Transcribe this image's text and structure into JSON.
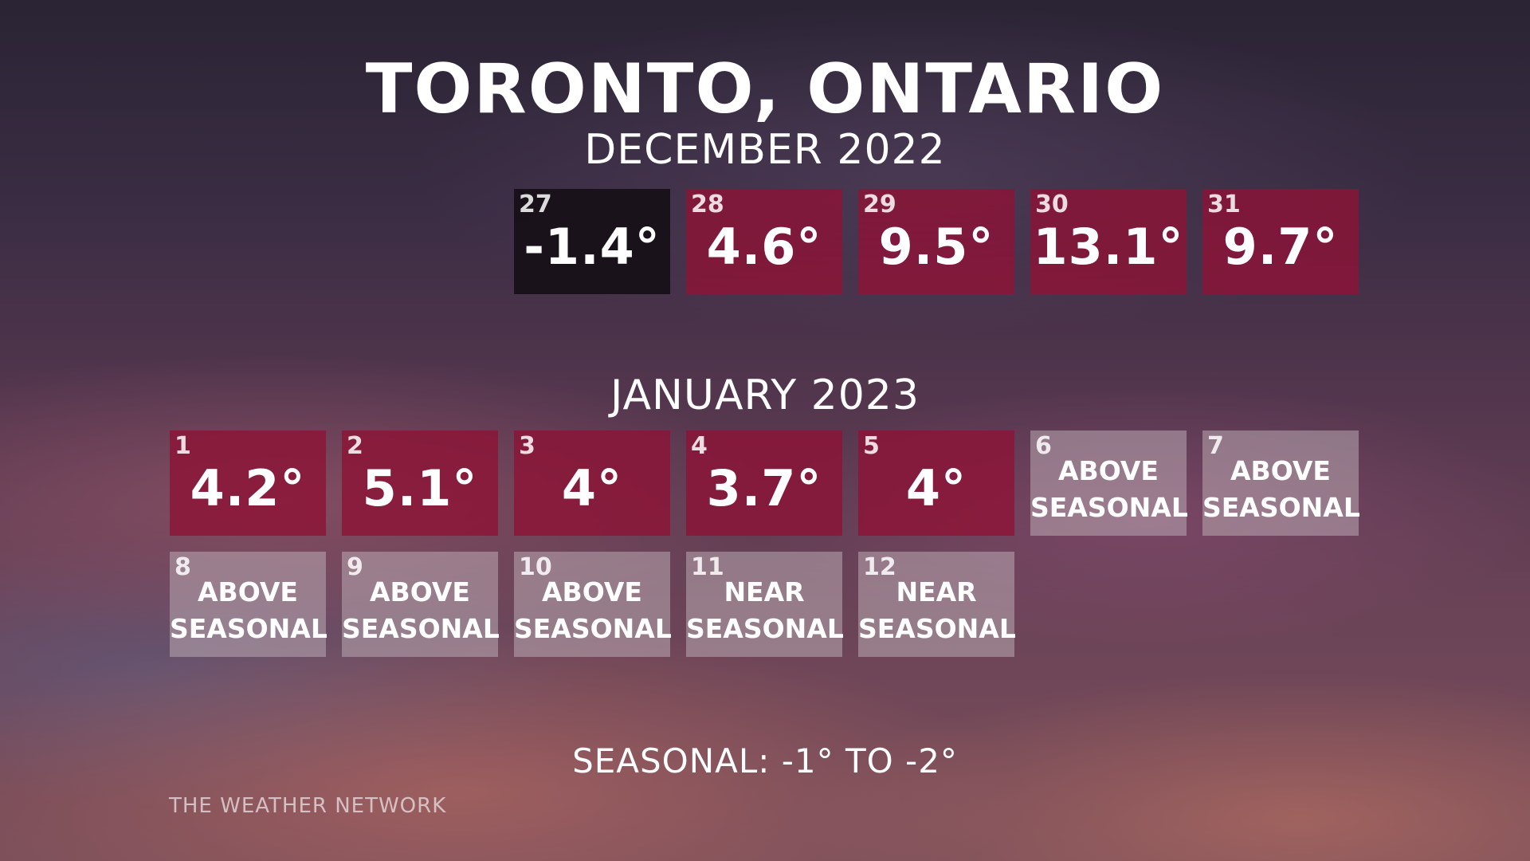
{
  "title": "TORONTO, ONTARIO",
  "december": {
    "heading": "DECEMBER 2022",
    "days": [
      {
        "day": "27",
        "value": "-1.4°"
      },
      {
        "day": "28",
        "value": "4.6°"
      },
      {
        "day": "29",
        "value": "9.5°"
      },
      {
        "day": "30",
        "value": "13.1°"
      },
      {
        "day": "31",
        "value": "9.7°"
      }
    ]
  },
  "january": {
    "heading": "JANUARY 2023",
    "days": [
      {
        "day": "1",
        "value": "4.2°"
      },
      {
        "day": "2",
        "value": "5.1°"
      },
      {
        "day": "3",
        "value": "4°"
      },
      {
        "day": "4",
        "value": "3.7°"
      },
      {
        "day": "5",
        "value": "4°"
      },
      {
        "day": "6",
        "line1": "ABOVE",
        "line2": "SEASONAL"
      },
      {
        "day": "7",
        "line1": "ABOVE",
        "line2": "SEASONAL"
      },
      {
        "day": "8",
        "line1": "ABOVE",
        "line2": "SEASONAL"
      },
      {
        "day": "9",
        "line1": "ABOVE",
        "line2": "SEASONAL"
      },
      {
        "day": "10",
        "line1": "ABOVE",
        "line2": "SEASONAL"
      },
      {
        "day": "11",
        "line1": "NEAR",
        "line2": "SEASONAL"
      },
      {
        "day": "12",
        "line1": "NEAR",
        "line2": "SEASONAL"
      }
    ]
  },
  "footnote": "SEASONAL: -1° TO -2°",
  "brand": "THE WEATHER NETWORK",
  "colors": {
    "warm_tile": "#8c1437",
    "cold_tile": "#140e14",
    "outlook_tile": "#b9aab2"
  }
}
